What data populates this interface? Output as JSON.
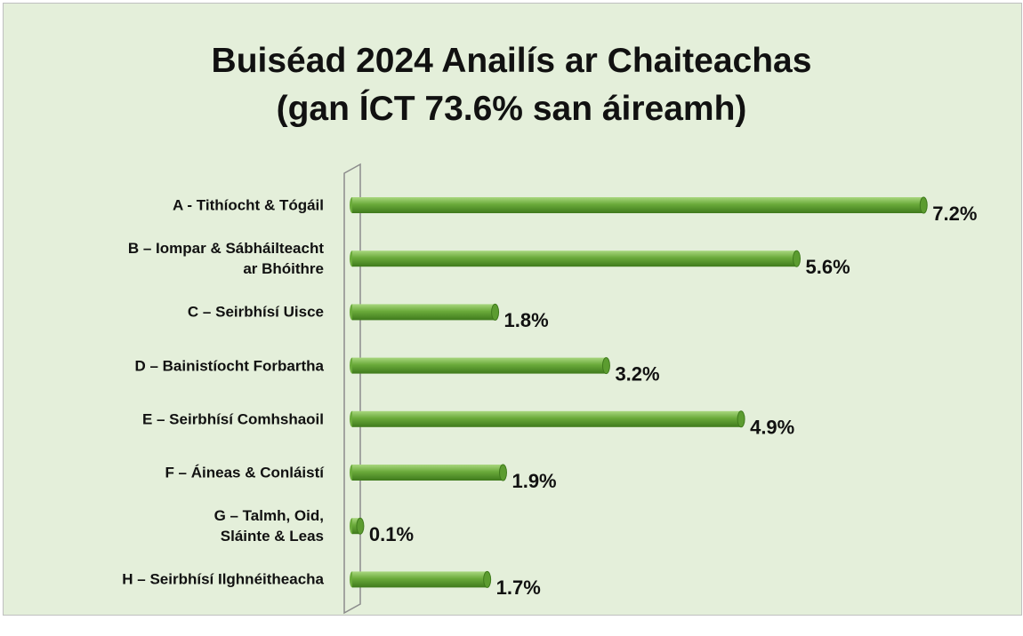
{
  "chart_data": {
    "type": "bar",
    "orientation": "horizontal",
    "title": "Buiséad 2024 Anailís ar Chaiteachas\n(gan ÍCT 73.6% san áireamh)",
    "categories": [
      "A - Tithíocht & Tógáil",
      "B – Iompar & Sábháilteacht\nar Bhóithre",
      "C – Seirbhísí Uisce",
      "D – Bainistíocht Forbartha",
      "E – Seirbhísí Comhshaoil",
      "F – Áineas & Conláistí",
      "G – Talmh, Oid,\nSláinte & Leas",
      "H – Seirbhísí Ilghnéitheacha"
    ],
    "values": [
      7.2,
      5.6,
      1.8,
      3.2,
      4.9,
      1.9,
      0.1,
      1.7
    ],
    "value_labels": [
      "7.2%",
      "5.6%",
      "1.8%",
      "3.2%",
      "4.9%",
      "1.9%",
      "0.1%",
      "1.7%"
    ],
    "color": "#6aaa3a"
  }
}
